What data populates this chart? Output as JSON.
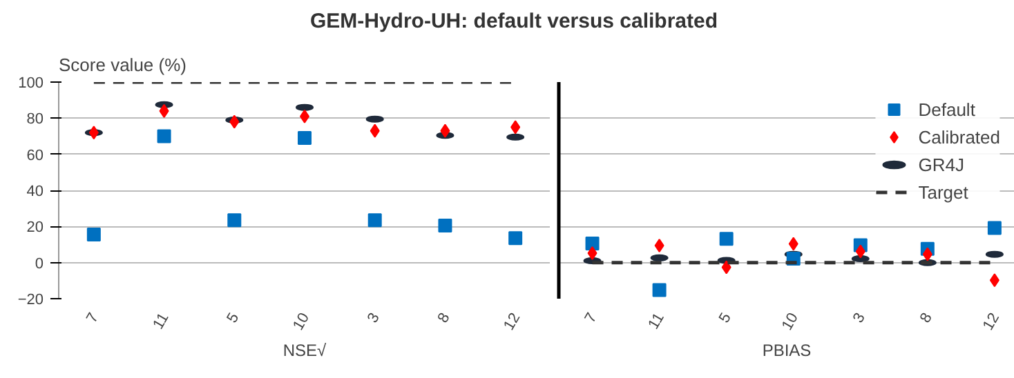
{
  "chart_data": [
    {
      "type": "scatter",
      "title": "GEM-Hydro-UH: default versus calibrated",
      "ylabel": "Score value (%)",
      "xlabel": "NSE√",
      "categories": [
        "7",
        "11",
        "5",
        "10",
        "3",
        "8",
        "12"
      ],
      "series": [
        {
          "marker": "square",
          "color": "#0070c0",
          "values": [
            15.5,
            70,
            23.5,
            69,
            23.5,
            20.5,
            13.5
          ]
        },
        {
          "marker": "diamond",
          "color": "#ff0000",
          "values": [
            72,
            84,
            78,
            81,
            73,
            73,
            75
          ]
        },
        {
          "color": "#1f2a3a",
          "values": [
            72,
            87.5,
            79,
            86,
            79.5,
            70.5,
            69.5
          ]
        },
        {
          "type": "line",
          "line_style": "dashed",
          "color": "#333333",
          "values": [
            100,
            100,
            100,
            100,
            100,
            100,
            100
          ]
        }
      ],
      "ylim": [
        -20,
        100
      ],
      "yticks": [
        -20,
        0,
        20,
        40,
        60,
        80,
        100
      ],
      "grid": "y"
    },
    {
      "type": "scatter",
      "xlabel": "PBIAS",
      "categories": [
        "7",
        "11",
        "5",
        "10",
        "3",
        "8",
        "12"
      ],
      "series": [
        {
          "name": "Default",
          "marker": "square",
          "color": "#0070c0",
          "values": [
            10.6,
            -15.2,
            13.2,
            2.2,
            9.6,
            7.6,
            19.2
          ]
        },
        {
          "name": "Calibrated",
          "marker": "diamond",
          "color": "#ff0000",
          "values": [
            5.2,
            9.4,
            -2.6,
            10.4,
            6.2,
            4.6,
            -9.8
          ]
        },
        {
          "name": "GR4J",
          "color": "#1f2a3a",
          "values": [
            1,
            2.6,
            1.2,
            4.6,
            2.2,
            0,
            4.6
          ]
        },
        {
          "name": "Target",
          "type": "line",
          "line_style": "dashed",
          "color": "#333333",
          "values": [
            0,
            0,
            0,
            0,
            0,
            0,
            0
          ]
        }
      ],
      "ylim": [
        -20,
        100
      ],
      "yticks": [
        -20,
        0,
        20,
        40,
        60,
        80,
        100
      ],
      "grid": "y",
      "tick_labels": "x",
      "legend": "top right"
    }
  ]
}
